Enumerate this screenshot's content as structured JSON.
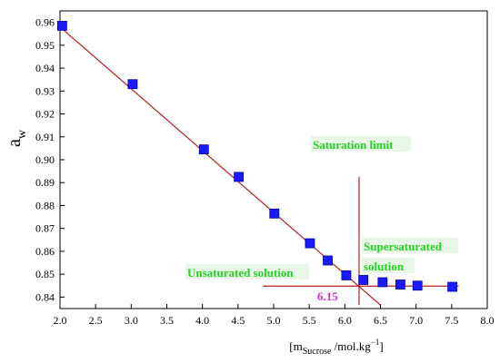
{
  "chart_data": {
    "type": "scatter",
    "title": "",
    "xlabel": {
      "prefix": "[m",
      "subscript": "Sucrose",
      "middle": " /mol.kg",
      "superscript": "−1",
      "suffix": "]"
    },
    "ylabel": {
      "main": "a",
      "subscript": "w"
    },
    "xlim": [
      2.0,
      8.0
    ],
    "ylim": [
      0.835,
      0.965
    ],
    "x_ticks": [
      "2.0",
      "2.5",
      "3.0",
      "3.5",
      "4.0",
      "4.5",
      "5.0",
      "5.5",
      "6.0",
      "6.5",
      "7.0",
      "7.5",
      "8.0"
    ],
    "y_ticks": [
      "0.84",
      "0.85",
      "0.86",
      "0.87",
      "0.88",
      "0.89",
      "0.90",
      "0.91",
      "0.92",
      "0.93",
      "0.94",
      "0.95",
      "0.96"
    ],
    "series": [
      {
        "marker": "square",
        "color": "#1a1aff",
        "x": [
          2.03,
          3.02,
          4.02,
          4.51,
          5.01,
          5.51,
          5.76,
          6.02,
          6.26,
          6.53,
          6.78,
          7.02,
          7.51
        ],
        "y": [
          0.9585,
          0.933,
          0.9045,
          0.8925,
          0.8765,
          0.8635,
          0.856,
          0.8495,
          0.8475,
          0.8465,
          0.8455,
          0.845,
          0.8445
        ]
      }
    ],
    "fit_lines": [
      {
        "color": "#b22222",
        "x": [
          2.0,
          6.5
        ],
        "y": [
          0.958,
          0.8365
        ]
      },
      {
        "color": "#b22222",
        "x": [
          4.85,
          7.6
        ],
        "y": [
          0.8448,
          0.8448
        ]
      }
    ],
    "saturation_line": {
      "color": "#b22222",
      "x": 6.2,
      "y": [
        0.8365,
        0.8925
      ]
    },
    "annotations": {
      "saturation_limit": "Saturation limit",
      "supersaturated_1": "Supersaturated",
      "supersaturated_2": "solution",
      "unsaturated": "Unsaturated solution",
      "value": "6.15"
    },
    "grid": false,
    "legend": "none"
  }
}
